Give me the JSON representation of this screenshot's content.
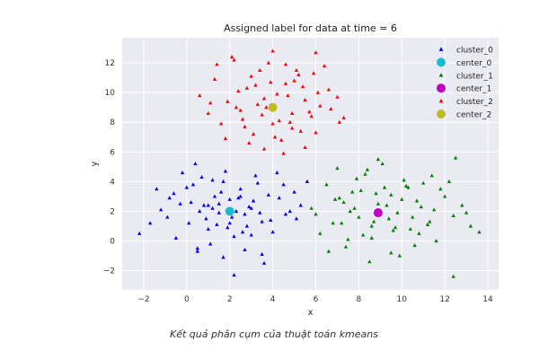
{
  "caption": "Kết quả phân cụm của thuật toán kmeans",
  "chart_data": {
    "type": "scatter",
    "title": "Assigned label for data at time = 6",
    "xlabel": "x",
    "ylabel": "y",
    "xlim": [
      -3,
      14.5
    ],
    "ylim": [
      -3.3,
      13.7
    ],
    "xticks": [
      -2,
      0,
      2,
      4,
      6,
      8,
      10,
      12,
      14
    ],
    "yticks": [
      -2,
      0,
      2,
      4,
      6,
      8,
      10,
      12
    ],
    "grid": true,
    "legend_position": "top-right",
    "background_color": "#eaeaf2",
    "series": [
      {
        "name": "cluster_0",
        "marker": "triangle",
        "color": "#0000ff",
        "x": [
          -2.2,
          -1.7,
          -1.4,
          -1.2,
          -0.9,
          -0.6,
          -0.3,
          -0.2,
          0.1,
          0.3,
          0.5,
          0.8,
          1.0,
          1.2,
          1.5,
          1.7,
          2.0,
          2.2,
          2.5,
          2.7,
          3.0,
          3.2,
          3.5,
          3.8,
          4.0,
          4.3,
          4.6,
          5.0,
          5.3,
          5.6,
          0.4,
          0.9,
          1.3,
          1.8,
          2.3,
          2.8,
          3.3,
          3.6,
          1.1,
          2.6,
          -0.5,
          0.6,
          1.6,
          2.1,
          3.1,
          4.5,
          0.2,
          1.4,
          2.4,
          3.4,
          0.7,
          1.9,
          2.9,
          3.9,
          4.8,
          -0.8,
          0.0,
          1.0,
          2.0,
          3.0,
          1.5,
          2.5,
          3.5,
          0.5,
          4.2,
          5.1,
          1.7,
          2.2,
          2.7,
          1.2
        ],
        "y": [
          0.5,
          1.2,
          3.5,
          2.1,
          1.6,
          3.2,
          2.5,
          4.6,
          1.2,
          3.8,
          -0.5,
          2.4,
          0.8,
          4.1,
          1.9,
          -1.1,
          2.8,
          0.3,
          3.5,
          -0.6,
          2.2,
          4.4,
          1.3,
          3.1,
          0.6,
          2.9,
          1.8,
          3.3,
          2.4,
          4.0,
          5.2,
          1.5,
          3.0,
          4.7,
          2.0,
          1.0,
          3.9,
          -1.5,
          -0.2,
          0.6,
          0.2,
          2.0,
          3.3,
          1.6,
          2.7,
          3.8,
          2.6,
          1.1,
          2.9,
          1.9,
          4.3,
          0.9,
          2.3,
          1.4,
          2.0,
          2.9,
          3.6,
          2.4,
          1.2,
          0.4,
          2.5,
          3.0,
          -0.9,
          -0.7,
          4.6,
          1.5,
          4.0,
          -2.3,
          1.8,
          2.2
        ]
      },
      {
        "name": "center_0",
        "marker": "circle",
        "color": "#17becf",
        "x": [
          2.0
        ],
        "y": [
          2.0
        ]
      },
      {
        "name": "cluster_1",
        "marker": "triangle",
        "color": "#008000",
        "x": [
          5.8,
          6.2,
          6.5,
          6.8,
          7.1,
          7.4,
          7.7,
          8.0,
          8.3,
          8.6,
          8.9,
          9.2,
          9.5,
          9.8,
          10.1,
          10.4,
          10.7,
          11.0,
          11.3,
          11.6,
          12.0,
          12.4,
          12.8,
          13.2,
          13.6,
          7.0,
          7.6,
          8.2,
          8.8,
          9.4,
          10.0,
          10.6,
          11.2,
          6.6,
          7.9,
          9.1,
          10.3,
          11.5,
          8.5,
          9.7,
          6.0,
          7.3,
          8.7,
          10.9,
          12.2,
          7.5,
          8.1,
          9.0,
          9.9,
          11.8,
          6.9,
          8.4,
          9.6,
          10.5,
          12.5,
          7.2,
          9.3,
          10.8,
          8.9,
          9.5,
          12.4,
          13.0,
          7.8,
          11.4,
          8.6,
          10.2
        ],
        "y": [
          2.2,
          0.5,
          3.8,
          1.2,
          2.9,
          -0.4,
          3.3,
          1.6,
          4.5,
          0.2,
          2.5,
          3.6,
          -0.8,
          1.9,
          4.1,
          0.8,
          2.7,
          3.9,
          1.3,
          0.0,
          3.0,
          1.7,
          2.4,
          1.0,
          0.6,
          4.9,
          2.0,
          0.4,
          3.2,
          1.5,
          2.8,
          -0.3,
          1.1,
          -0.7,
          4.2,
          5.2,
          3.6,
          2.1,
          -1.4,
          0.9,
          1.8,
          2.6,
          1.3,
          2.3,
          4.0,
          0.1,
          3.4,
          1.9,
          -1.0,
          3.5,
          2.8,
          4.8,
          0.7,
          1.6,
          5.6,
          1.2,
          2.4,
          0.5,
          5.5,
          3.1,
          -2.4,
          1.9,
          2.2,
          4.4,
          1.0,
          3.7
        ]
      },
      {
        "name": "center_1",
        "marker": "circle",
        "color": "#c000c0",
        "x": [
          8.9
        ],
        "y": [
          1.9
        ]
      },
      {
        "name": "cluster_2",
        "marker": "triangle",
        "color": "#ff0000",
        "x": [
          0.6,
          1.0,
          1.3,
          1.6,
          1.9,
          2.2,
          2.5,
          2.8,
          3.1,
          3.4,
          3.7,
          4.0,
          4.3,
          4.6,
          4.9,
          5.2,
          5.5,
          5.8,
          6.1,
          6.4,
          6.7,
          7.0,
          7.3,
          1.8,
          2.4,
          3.0,
          3.6,
          4.2,
          4.8,
          5.4,
          6.0,
          2.1,
          2.7,
          3.3,
          3.9,
          4.5,
          5.1,
          5.7,
          3.5,
          4.1,
          4.7,
          1.4,
          6.6,
          2.9,
          5.3,
          3.8,
          4.4,
          5.0,
          2.6,
          6.2,
          3.2,
          4.0,
          4.9,
          1.1,
          7.1,
          5.9,
          3.6,
          4.6,
          2.3,
          5.5,
          6.0
        ],
        "y": [
          9.8,
          8.6,
          10.9,
          7.9,
          9.4,
          12.2,
          8.8,
          10.3,
          7.2,
          11.5,
          9.0,
          12.8,
          8.1,
          10.6,
          7.6,
          11.2,
          9.5,
          8.4,
          10.0,
          11.8,
          8.9,
          9.7,
          8.3,
          6.9,
          10.1,
          11.1,
          6.2,
          9.9,
          8.0,
          10.4,
          7.3,
          12.4,
          7.7,
          9.2,
          10.7,
          5.9,
          11.5,
          8.7,
          8.5,
          7.0,
          9.8,
          11.9,
          10.2,
          6.6,
          7.4,
          12.0,
          6.8,
          10.8,
          8.2,
          9.1,
          10.5,
          7.9,
          8.6,
          9.3,
          8.0,
          11.3,
          9.6,
          11.9,
          9.0,
          6.3,
          12.7
        ]
      },
      {
        "name": "center_2",
        "marker": "circle",
        "color": "#bcbd22",
        "x": [
          4.0
        ],
        "y": [
          9.0
        ]
      }
    ]
  }
}
